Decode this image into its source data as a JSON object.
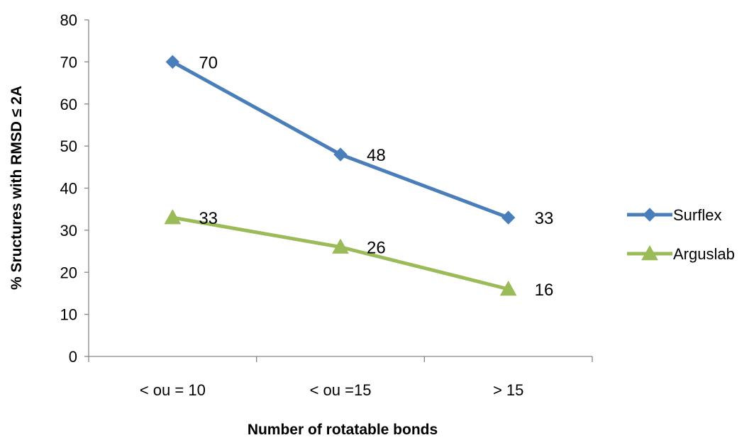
{
  "chart_data": {
    "type": "line",
    "title": "",
    "xlabel": "Number of rotatable bonds",
    "ylabel": "% Sructures with RMSD ≤ 2A",
    "categories": [
      "< ou = 10",
      "< ou =15",
      "> 15"
    ],
    "ylim": [
      0,
      80
    ],
    "yticks": [
      0,
      10,
      20,
      30,
      40,
      50,
      60,
      70,
      80
    ],
    "grid": false,
    "legend_position": "right",
    "series": [
      {
        "name": "Surflex",
        "values": [
          70,
          48,
          33
        ],
        "color": "#4a7ebb",
        "marker": "diamond",
        "labels": [
          "70",
          "48",
          "33"
        ]
      },
      {
        "name": "Arguslab",
        "values": [
          33,
          26,
          16
        ],
        "color": "#9bbb59",
        "marker": "triangle",
        "labels": [
          "33",
          "26",
          "16"
        ]
      }
    ]
  }
}
